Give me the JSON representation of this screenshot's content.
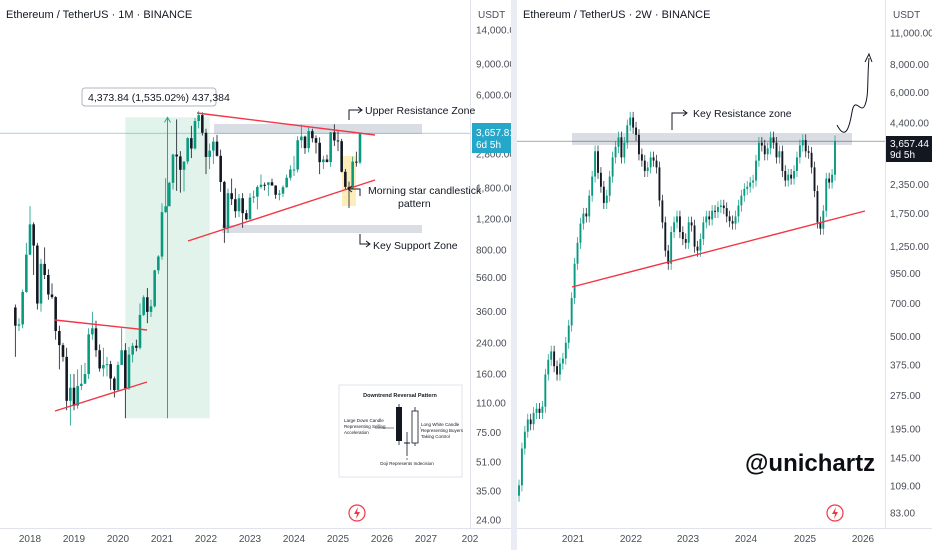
{
  "left_chart": {
    "title": "Ethereum / TetherUS · 1M · BINANCE",
    "currency": "USDT",
    "price_label": "3,657.81",
    "timer_label": "6d 5h",
    "price_tag_color": "#26a7c9",
    "measure_label": "4,373.84 (1,535.02%) 437,384",
    "annotations": {
      "upper_resistance": "Upper Resistance Zone",
      "morning_star": "Morning star candlestick",
      "morning_star_2": "pattern",
      "key_support": "Key Support Zone"
    },
    "inset": {
      "title": "Downtrend Reversal Pattern",
      "left_label_1": "Large Down Candle",
      "left_label_2": "Representing Selling",
      "left_label_3": "Acceleration",
      "right_label_1": "Long White Candle",
      "right_label_2": "Representing Buyers",
      "right_label_3": "Taking Control",
      "bottom_label": "Doji Represents Indecision"
    }
  },
  "right_chart": {
    "title": "Ethereum / TetherUS · 2W · BINANCE",
    "currency": "USDT",
    "price_label": "3,657.44",
    "timer_label": "9d 5h",
    "price_tag_color": "#131722",
    "annotations": {
      "key_resistance": "Key Resistance zone"
    },
    "watermark": "@unichartz"
  },
  "colors": {
    "up": "#089981",
    "down": "#131722",
    "trendline": "#f23645",
    "zone": "#d1d4dc",
    "measure_fill": "#c9ead9"
  },
  "chart_data": [
    {
      "type": "candlestick",
      "title": "Ethereum / TetherUS · 1M · BINANCE",
      "x_ticks": [
        "2018",
        "2019",
        "2020",
        "2021",
        "2022",
        "2023",
        "2024",
        "2025",
        "2026",
        "2027",
        "202"
      ],
      "y_ticks": [
        "14,000.00",
        "9,000.00",
        "6,000.00",
        "4,000.00",
        "2,800.00",
        "1,800.00",
        "1,200.00",
        "800.00",
        "560.00",
        "360.00",
        "240.00",
        "160.00",
        "110.00",
        "75.00",
        "51.00",
        "35.00",
        "24.00"
      ],
      "y_scale": "log",
      "last_price": 3657.81,
      "series": [
        {
          "name": "ETHUSDT 1M",
          "x": [
            "2017-09",
            "2017-10",
            "2017-11",
            "2017-12",
            "2018-01",
            "2018-02",
            "2018-03",
            "2018-04",
            "2018-05",
            "2018-06",
            "2018-07",
            "2018-08",
            "2018-09",
            "2018-10",
            "2018-11",
            "2018-12",
            "2019-01",
            "2019-02",
            "2019-03",
            "2019-04",
            "2019-05",
            "2019-06",
            "2019-07",
            "2019-08",
            "2019-09",
            "2019-10",
            "2019-11",
            "2019-12",
            "2020-01",
            "2020-02",
            "2020-03",
            "2020-04",
            "2020-05",
            "2020-06",
            "2020-07",
            "2020-08",
            "2020-09",
            "2020-10",
            "2020-11",
            "2020-12",
            "2021-01",
            "2021-02",
            "2021-03",
            "2021-04",
            "2021-05",
            "2021-06",
            "2021-07",
            "2021-08",
            "2021-09",
            "2021-10",
            "2021-11",
            "2021-12",
            "2022-01",
            "2022-02",
            "2022-03",
            "2022-04",
            "2022-05",
            "2022-06",
            "2022-07",
            "2022-08",
            "2022-09",
            "2022-10",
            "2022-11",
            "2022-12",
            "2023-01",
            "2023-02",
            "2023-03",
            "2023-04",
            "2023-05",
            "2023-06",
            "2023-07",
            "2023-08",
            "2023-09",
            "2023-10",
            "2023-11",
            "2023-12",
            "2024-01",
            "2024-02",
            "2024-03",
            "2024-04",
            "2024-05",
            "2024-06",
            "2024-07",
            "2024-08",
            "2024-09",
            "2024-10",
            "2024-11",
            "2024-12",
            "2025-01",
            "2025-02",
            "2025-03",
            "2025-04",
            "2025-05",
            "2025-06",
            "2025-07"
          ],
          "open": [
            380,
            300,
            305,
            465,
            755,
            1120,
            850,
            400,
            670,
            580,
            450,
            435,
            280,
            233,
            200,
            113,
            134,
            106,
            137,
            141,
            160,
            268,
            290,
            218,
            172,
            180,
            182,
            151,
            130,
            180,
            218,
            133,
            206,
            231,
            225,
            345,
            434,
            359,
            386,
            616,
            737,
            1312,
            1416,
            1920,
            2773,
            2707,
            2275,
            2536,
            3433,
            3001,
            4288,
            4632,
            3682,
            2688,
            2919,
            3282,
            2728,
            1942,
            1070,
            1678,
            1553,
            1328,
            1572,
            1295,
            1196,
            1585,
            1605,
            1821,
            1873,
            1871,
            1934,
            1855,
            1645,
            1670,
            1814,
            2051,
            2282,
            2283,
            3340,
            3504,
            3014,
            3762,
            3432,
            3232,
            2513,
            2602,
            2518,
            3703,
            3332,
            3300,
            2217,
            1823,
            1795,
            2530,
            2500
          ],
          "high": [
            395,
            330,
            480,
            880,
            1420,
            1150,
            880,
            715,
            830,
            625,
            520,
            440,
            300,
            240,
            225,
            160,
            160,
            170,
            180,
            185,
            290,
            360,
            320,
            235,
            225,
            200,
            190,
            155,
            188,
            290,
            239,
            227,
            240,
            250,
            400,
            445,
            489,
            420,
            620,
            750,
            1470,
            2040,
            1950,
            2800,
            4380,
            2900,
            2500,
            3470,
            4030,
            4460,
            4870,
            4800,
            3880,
            3200,
            3480,
            3580,
            2958,
            1970,
            1780,
            2030,
            1790,
            1660,
            1680,
            1350,
            1680,
            1740,
            1860,
            2140,
            1930,
            1930,
            2030,
            1860,
            1750,
            1860,
            2140,
            2410,
            2720,
            3520,
            4090,
            3550,
            3980,
            3880,
            3560,
            3470,
            2730,
            2770,
            3720,
            4110,
            3750,
            3400,
            2300,
            1950,
            2700,
            2880,
            3700
          ],
          "low": [
            200,
            280,
            290,
            460,
            750,
            580,
            370,
            360,
            550,
            420,
            425,
            250,
            170,
            188,
            100,
            82,
            100,
            102,
            130,
            148,
            150,
            250,
            200,
            165,
            155,
            155,
            130,
            118,
            128,
            180,
            90,
            130,
            186,
            215,
            220,
            340,
            310,
            336,
            380,
            588,
            707,
            1300,
            1440,
            1760,
            1730,
            1690,
            1720,
            2450,
            2650,
            2960,
            3900,
            3550,
            2150,
            2300,
            2450,
            2700,
            1710,
            880,
            1000,
            1440,
            1220,
            1230,
            1070,
            1180,
            1190,
            1480,
            1360,
            1780,
            1740,
            1620,
            1850,
            1560,
            1530,
            1600,
            1800,
            1980,
            2100,
            2200,
            3020,
            2800,
            2850,
            3250,
            2810,
            2150,
            2300,
            2500,
            2360,
            3100,
            2900,
            2200,
            1750,
            1385,
            1760,
            2370,
            2450
          ],
          "close": [
            300,
            305,
            465,
            755,
            1120,
            850,
            400,
            670,
            580,
            450,
            435,
            280,
            233,
            200,
            113,
            134,
            106,
            137,
            141,
            160,
            268,
            290,
            218,
            172,
            180,
            182,
            151,
            130,
            180,
            218,
            133,
            206,
            231,
            225,
            345,
            434,
            359,
            386,
            616,
            737,
            1312,
            1416,
            1920,
            2773,
            2707,
            2275,
            2536,
            3433,
            3001,
            4288,
            4632,
            3682,
            2688,
            2919,
            3282,
            2728,
            1942,
            1070,
            1678,
            1553,
            1328,
            1572,
            1295,
            1196,
            1585,
            1605,
            1821,
            1873,
            1871,
            1934,
            1855,
            1645,
            1670,
            1814,
            2051,
            2282,
            2283,
            3340,
            3504,
            3014,
            3762,
            3432,
            3232,
            2513,
            2602,
            2518,
            3703,
            3332,
            3300,
            2217,
            1823,
            1795,
            2530,
            2500,
            3657
          ]
        }
      ]
    },
    {
      "type": "candlestick",
      "title": "Ethereum / TetherUS · 2W · BINANCE",
      "x_ticks": [
        "2021",
        "2022",
        "2023",
        "2024",
        "2025",
        "2026"
      ],
      "y_ticks": [
        "11,000.00",
        "8,000.00",
        "6,000.00",
        "4,400.00",
        "3,200.00",
        "2,350.00",
        "1,750.00",
        "1,250.00",
        "950.00",
        "700.00",
        "500.00",
        "375.00",
        "275.00",
        "195.00",
        "145.00",
        "109.00",
        "83.00"
      ],
      "y_scale": "log",
      "last_price": 3657.44,
      "series": [
        {
          "name": "ETHUSDT 2W",
          "x_start": "2020-03",
          "x_end": "2025-07",
          "close": [
            110,
            160,
            190,
            215,
            205,
            230,
            240,
            230,
            245,
            340,
            395,
            430,
            370,
            340,
            380,
            400,
            470,
            560,
            740,
            1050,
            1300,
            1580,
            1750,
            1700,
            2100,
            2550,
            3300,
            2650,
            2300,
            1950,
            2100,
            2550,
            3100,
            3450,
            3800,
            3100,
            3600,
            4300,
            4650,
            4200,
            3900,
            3200,
            3000,
            2700,
            2800,
            3100,
            3000,
            2800,
            2000,
            1600,
            1200,
            1050,
            1450,
            1600,
            1700,
            1450,
            1350,
            1300,
            1600,
            1550,
            1250,
            1200,
            1350,
            1600,
            1700,
            1650,
            1800,
            1780,
            1870,
            1900,
            1850,
            1700,
            1620,
            1580,
            1700,
            1900,
            2100,
            2250,
            2300,
            2400,
            2450,
            3000,
            3600,
            3500,
            3200,
            3400,
            3800,
            3600,
            3100,
            3300,
            2700,
            2450,
            2600,
            2500,
            2700,
            3100,
            3500,
            3700,
            3300,
            3250,
            2800,
            2200,
            1600,
            1500,
            1800,
            2500,
            2400,
            2600,
            3657
          ]
        }
      ]
    }
  ]
}
